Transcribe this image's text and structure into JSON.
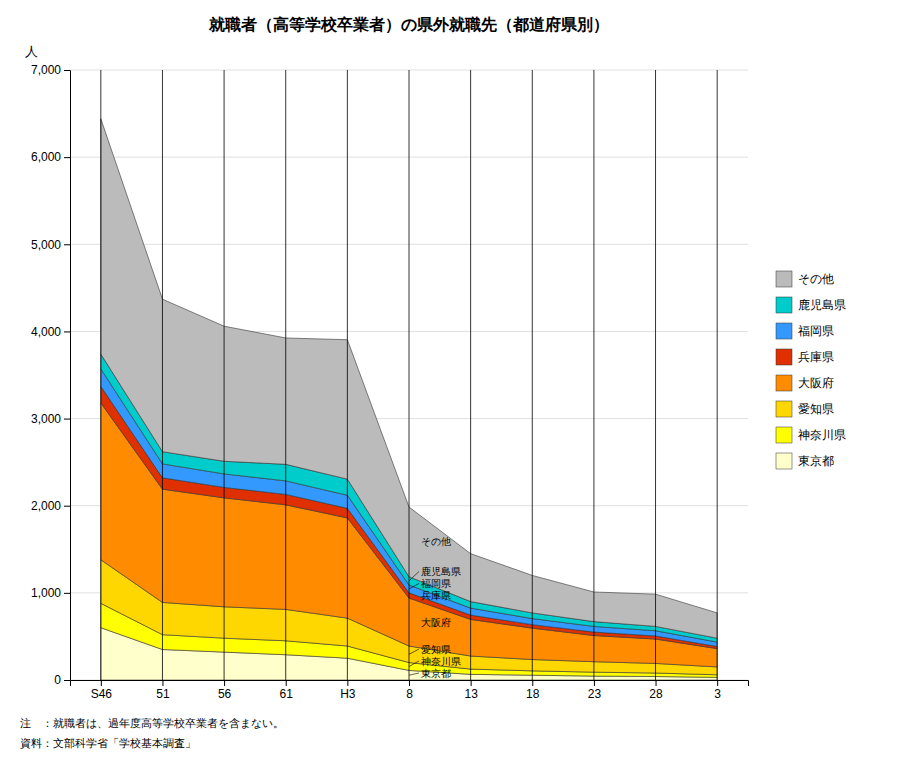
{
  "chart_data": {
    "type": "area",
    "stacked": true,
    "title": "就職者（高等学校卒業者）の県外就職先（都道府県別）",
    "ylabel": "人",
    "categories": [
      "S46",
      "51",
      "56",
      "61",
      "H3",
      "8",
      "13",
      "18",
      "23",
      "28",
      "3"
    ],
    "series": [
      {
        "name": "東京都",
        "color": "#FFFFCC",
        "values": [
          600,
          350,
          320,
          290,
          250,
          110,
          65,
          55,
          45,
          40,
          30
        ]
      },
      {
        "name": "神奈川県",
        "color": "#FFFF00",
        "values": [
          280,
          170,
          160,
          160,
          140,
          90,
          60,
          50,
          45,
          40,
          30
        ]
      },
      {
        "name": "愛知県",
        "color": "#FFD700",
        "values": [
          500,
          370,
          360,
          360,
          320,
          190,
          150,
          130,
          120,
          110,
          90
        ]
      },
      {
        "name": "大阪府",
        "color": "#FF8C00",
        "values": [
          1800,
          1300,
          1250,
          1200,
          1150,
          550,
          420,
          360,
          300,
          280,
          210
        ]
      },
      {
        "name": "兵庫県",
        "color": "#E03000",
        "values": [
          190,
          130,
          120,
          120,
          110,
          60,
          50,
          40,
          40,
          35,
          25
        ]
      },
      {
        "name": "福岡県",
        "color": "#3399FF",
        "values": [
          200,
          160,
          155,
          155,
          150,
          90,
          80,
          70,
          65,
          60,
          50
        ]
      },
      {
        "name": "鹿児島県",
        "color": "#00CCCC",
        "values": [
          170,
          140,
          145,
          190,
          185,
          95,
          75,
          65,
          55,
          50,
          45
        ]
      },
      {
        "name": "その他",
        "color": "#BBBBBB",
        "values": [
          2700,
          1750,
          1550,
          1450,
          1600,
          800,
          550,
          430,
          340,
          370,
          290
        ]
      }
    ],
    "ylim": [
      0,
      7000
    ],
    "yticks": [
      0,
      {
        "value": 1000,
        "label": "1,000"
      },
      {
        "value": 2000,
        "label": "2,000"
      },
      {
        "value": 3000,
        "label": "3,000"
      },
      {
        "value": 4000,
        "label": "4,000"
      },
      {
        "value": 5000,
        "label": "5,000"
      },
      {
        "value": 6000,
        "label": "6,000"
      },
      {
        "value": 7000,
        "label": "7,000"
      }
    ],
    "grid": true,
    "legend": "right",
    "annotations": [
      {
        "text": "東京都",
        "x": "8"
      },
      {
        "text": "神奈川県",
        "x": "8"
      },
      {
        "text": "愛知県",
        "x": "8"
      },
      {
        "text": "大阪府",
        "x": "8"
      },
      {
        "text": "兵庫県",
        "x": "8"
      },
      {
        "text": "福岡県",
        "x": "8"
      },
      {
        "text": "鹿児島県",
        "x": "8"
      },
      {
        "text": "その他",
        "x": "8"
      }
    ],
    "notes": [
      "注　：就職者は、過年度高等学校卒業者を含まない。",
      "資料：文部科学省「学校基本調査」"
    ]
  }
}
